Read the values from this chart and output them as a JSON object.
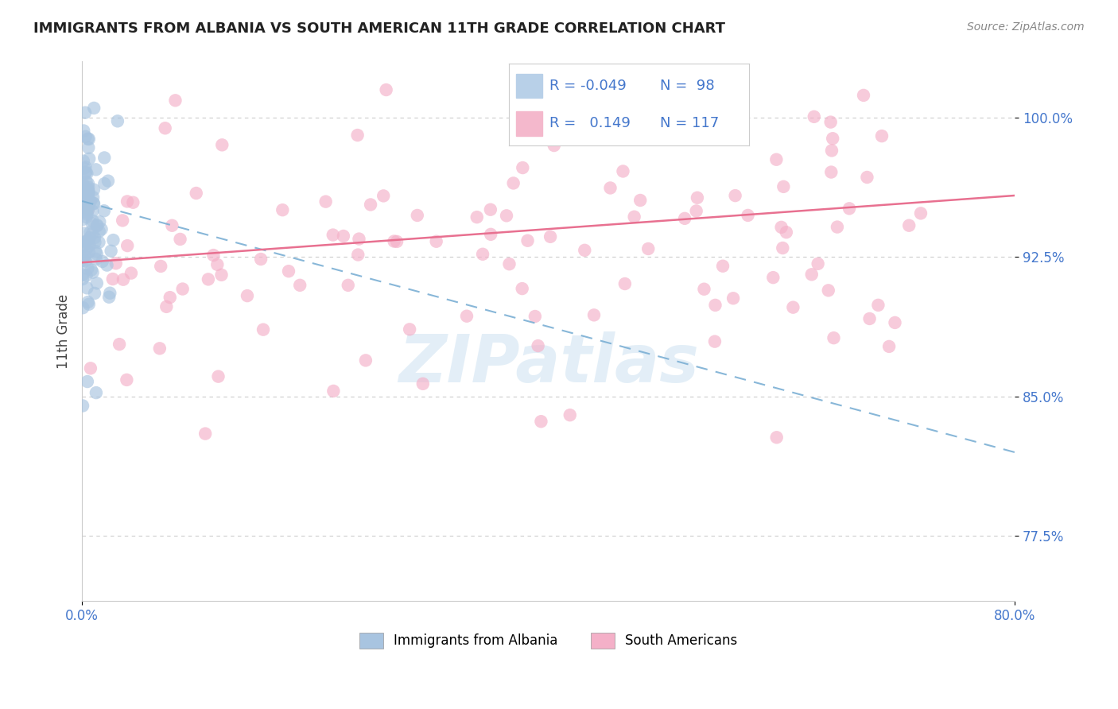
{
  "title": "IMMIGRANTS FROM ALBANIA VS SOUTH AMERICAN 11TH GRADE CORRELATION CHART",
  "source": "Source: ZipAtlas.com",
  "ylabel": "11th Grade",
  "legend_label1": "Immigrants from Albania",
  "legend_label2": "South Americans",
  "legend_line1": "R = -0.049   N =  98",
  "legend_line2": "R =   0.149   N = 117",
  "color_albania": "#a8c4e0",
  "color_south_american": "#f4b0c8",
  "color_albania_line": "#7bafd4",
  "color_south_american_line": "#e87090",
  "color_legend_text": "#4477cc",
  "albania_R": -0.049,
  "albania_N": 98,
  "south_american_R": 0.149,
  "south_american_N": 117,
  "xlim": [
    0.0,
    0.8
  ],
  "ylim": [
    0.74,
    1.03
  ],
  "background_color": "#ffffff",
  "ytick_vals": [
    1.0,
    0.925,
    0.85,
    0.775
  ],
  "ytick_labels": [
    "100.0%",
    "92.5%",
    "85.0%",
    "77.5%"
  ],
  "xtick_vals": [
    0.0,
    0.8
  ],
  "xtick_labels": [
    "0.0%",
    "80.0%"
  ],
  "grid_color": "#cccccc",
  "watermark_color": "#c8dff0",
  "watermark_alpha": 0.5
}
